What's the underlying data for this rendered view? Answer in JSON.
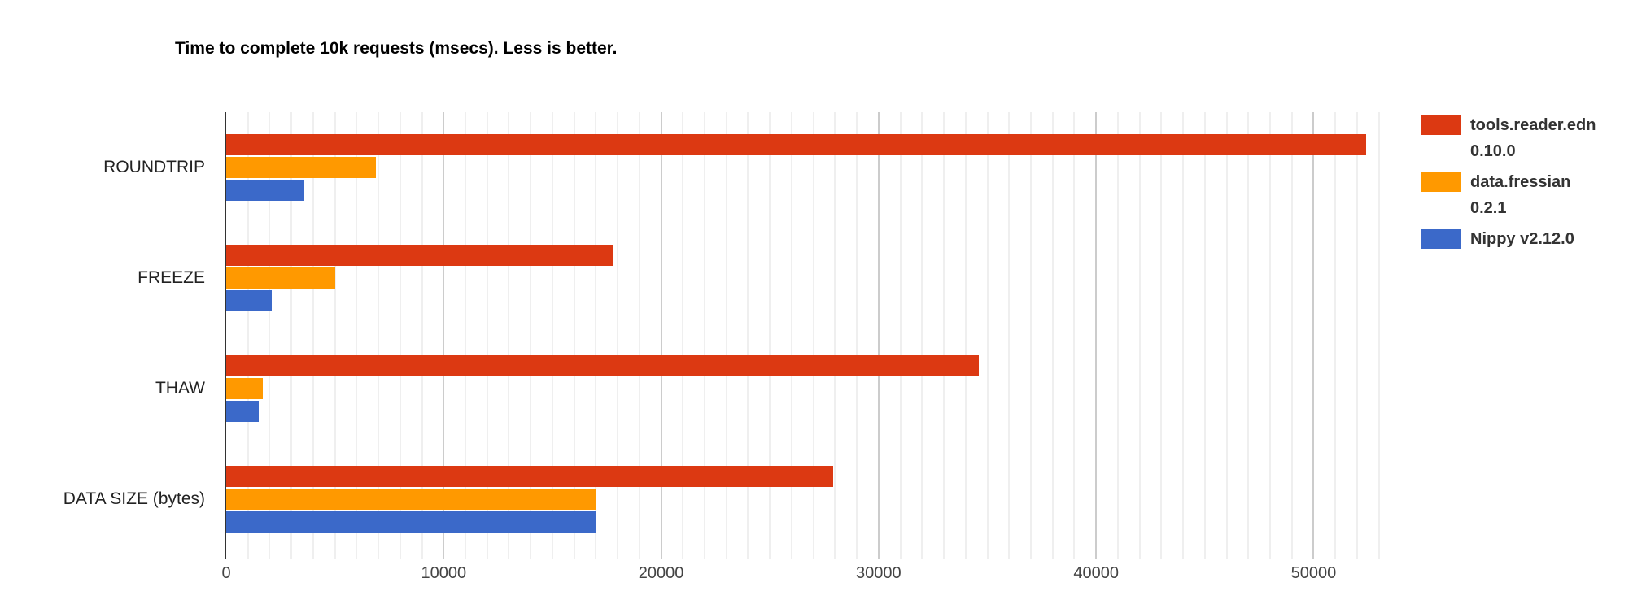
{
  "title": "Time to complete 10k requests (msecs). Less is better.",
  "chart_data": {
    "type": "bar",
    "orientation": "horizontal",
    "title": "Time to complete 10k requests (msecs). Less is better.",
    "categories": [
      "ROUNDTRIP",
      "FREEZE",
      "THAW",
      "DATA SIZE (bytes)"
    ],
    "series": [
      {
        "name": "tools.reader.edn 0.10.0",
        "legend_lines": [
          "tools.reader.edn",
          "0.10.0"
        ],
        "color": "#dc3912",
        "values": [
          52400,
          17800,
          34600,
          27900
        ]
      },
      {
        "name": "data.fressian 0.2.1",
        "legend_lines": [
          "data.fressian",
          "0.2.1"
        ],
        "color": "#ff9900",
        "values": [
          6900,
          5000,
          1700,
          17000
        ]
      },
      {
        "name": "Nippy v2.12.0",
        "legend_lines": [
          "Nippy v2.12.0"
        ],
        "color": "#3b69c9",
        "values": [
          3600,
          2100,
          1500,
          17000
        ]
      }
    ],
    "xlabel": "",
    "ylabel": "",
    "x_ticks": [
      0,
      10000,
      20000,
      30000,
      40000,
      50000
    ],
    "x_minor_step": 1000,
    "xlim": [
      0,
      53500
    ],
    "grid": true,
    "legend_position": "right",
    "axis_color": "#333333",
    "gridline_minor_color": "#efefef",
    "gridline_major_color": "#cccccc",
    "background_color": "#ffffff"
  }
}
